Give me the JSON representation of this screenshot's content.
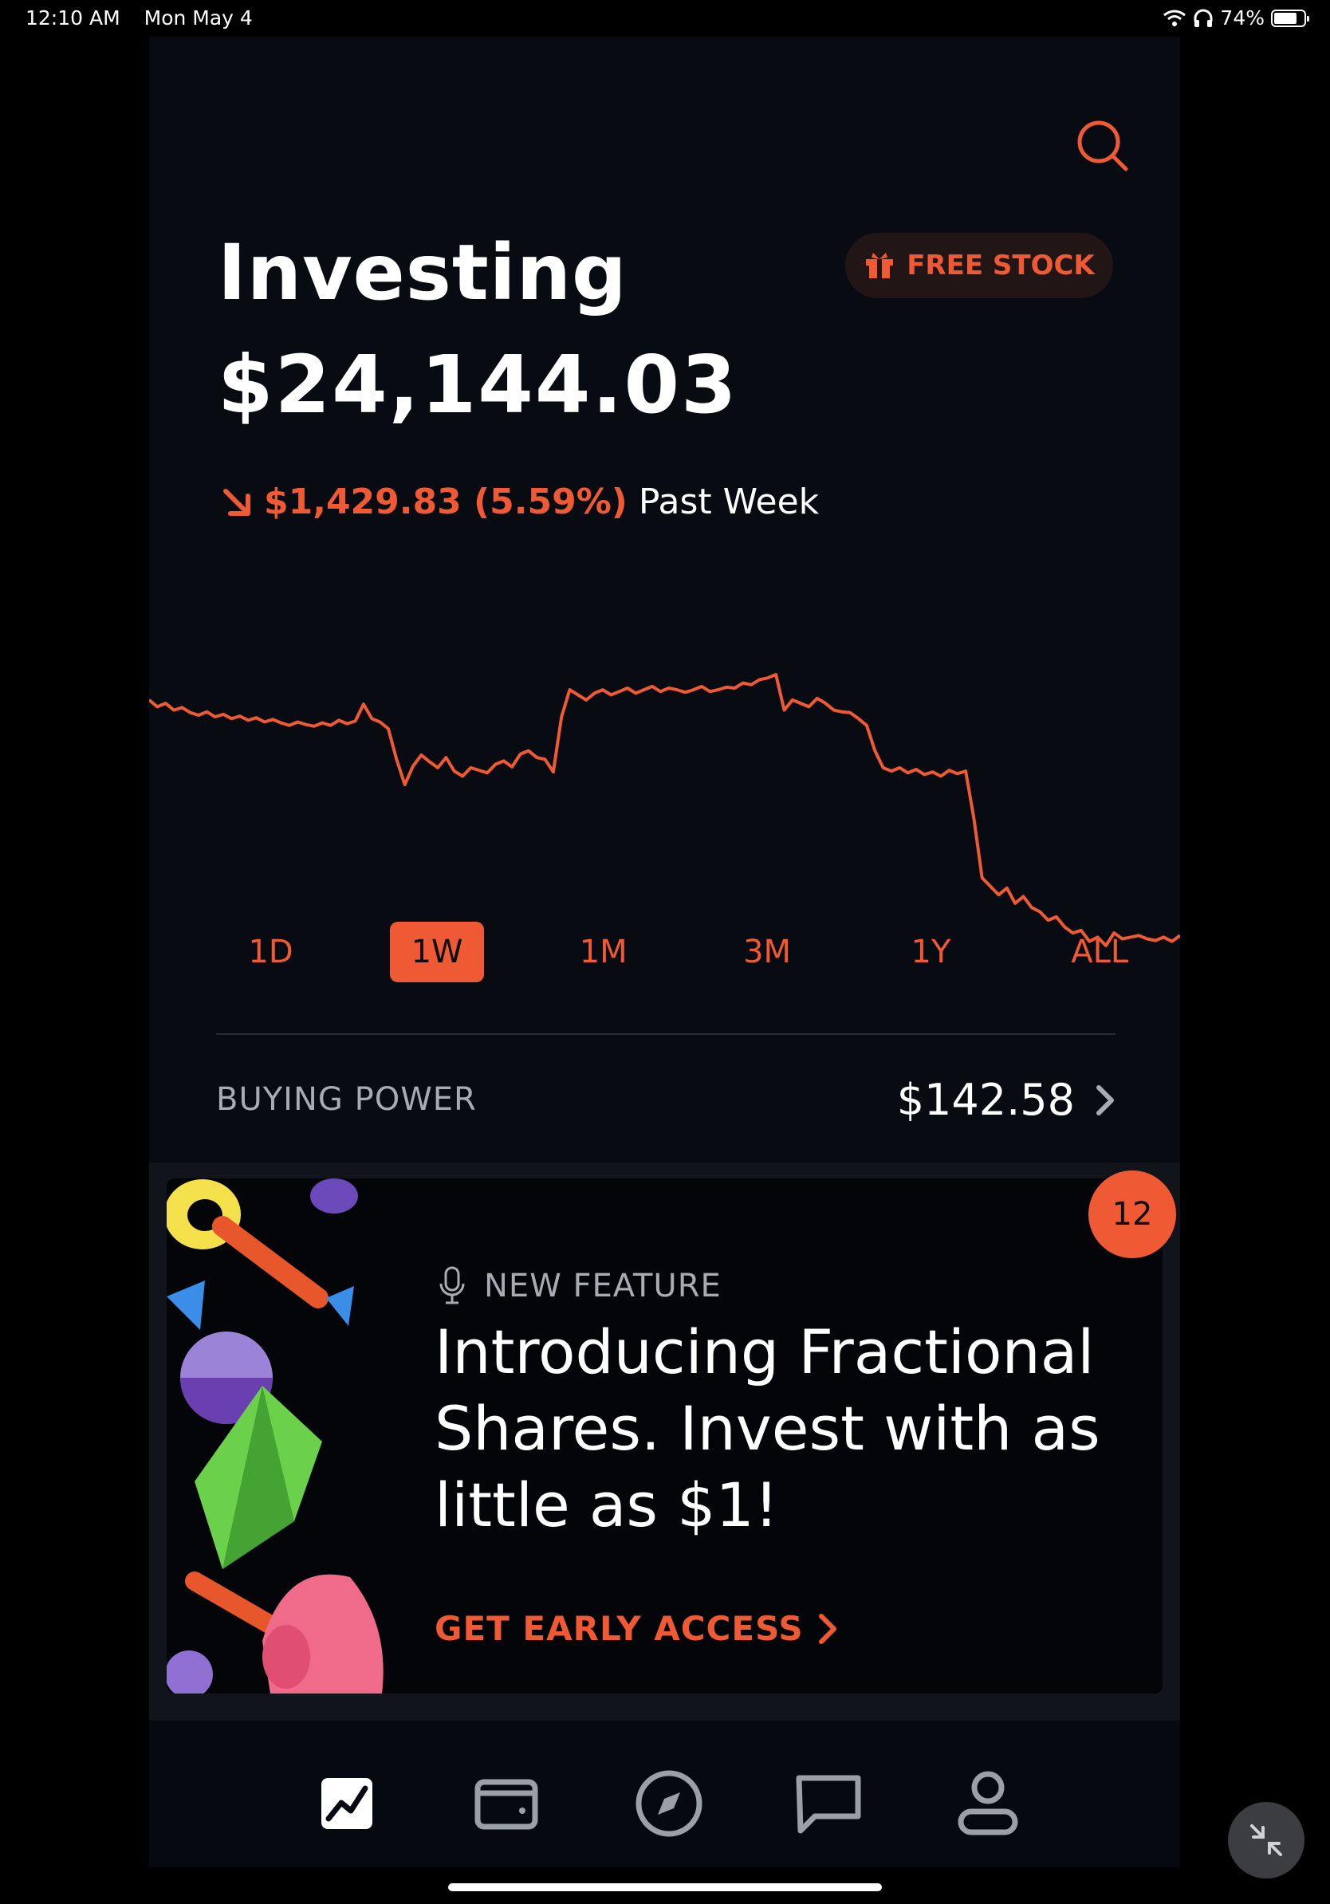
{
  "status_bar": {
    "time": "12:10 AM",
    "date": "Mon May 4",
    "battery": "74%"
  },
  "header": {
    "title": "Investing",
    "free_stock_label": "FREE STOCK"
  },
  "portfolio": {
    "balance": "$24,144.03",
    "change_amount": "$1,429.83 (5.59%)",
    "change_period": "Past Week",
    "direction": "down"
  },
  "chart_data": {
    "type": "line",
    "title": "",
    "series": [
      {
        "values": [
          24860,
          24852,
          24856,
          24848,
          24851,
          24845,
          24842,
          24846,
          24840,
          24843,
          24838,
          24841,
          24836,
          24839,
          24834,
          24837,
          24833,
          24830,
          24834,
          24831,
          24829,
          24833,
          24830,
          24836,
          24832,
          24835,
          24855,
          24838,
          24834,
          24826,
          24790,
          24760,
          24782,
          24795,
          24787,
          24780,
          24792,
          24776,
          24770,
          24780,
          24777,
          24774,
          24784,
          24788,
          24781,
          24796,
          24800,
          24792,
          24790,
          24775,
          24840,
          24872,
          24866,
          24860,
          24868,
          24872,
          24866,
          24870,
          24874,
          24868,
          24872,
          24876,
          24870,
          24874,
          24872,
          24869,
          24872,
          24876,
          24870,
          24872,
          24875,
          24874,
          24880,
          24878,
          24884,
          24886,
          24890,
          24848,
          24860,
          24856,
          24852,
          24862,
          24856,
          24848,
          24846,
          24845,
          24838,
          24830,
          24800,
          24780,
          24776,
          24780,
          24774,
          24778,
          24772,
          24775,
          24770,
          24777,
          24773,
          24776,
          24720,
          24650,
          24640,
          24630,
          24638,
          24620,
          24628,
          24615,
          24610,
          24600,
          24604,
          24592,
          24585,
          24588,
          24575,
          24580,
          24570,
          24585,
          24578,
          24580,
          24582,
          24578,
          24576,
          24580,
          24575,
          24582
        ]
      }
    ],
    "grid": false,
    "color": "#ef5a34"
  },
  "ranges": [
    {
      "label": "1D",
      "active": false
    },
    {
      "label": "1W",
      "active": true
    },
    {
      "label": "1M",
      "active": false
    },
    {
      "label": "3M",
      "active": false
    },
    {
      "label": "1Y",
      "active": false
    },
    {
      "label": "ALL",
      "active": false
    }
  ],
  "buying_power": {
    "label": "BUYING POWER",
    "value": "$142.58"
  },
  "promo": {
    "badge": "12",
    "tag": "NEW FEATURE",
    "headline": "Introducing Fractional Shares. Invest with as little as $1!",
    "cta": "GET EARLY ACCESS"
  },
  "tabs": [
    {
      "name": "portfolio-tab",
      "icon": "chart-icon",
      "active": true
    },
    {
      "name": "wallet-tab",
      "icon": "wallet-icon",
      "active": false
    },
    {
      "name": "explore-tab",
      "icon": "compass-icon",
      "active": false
    },
    {
      "name": "messages-tab",
      "icon": "chat-icon",
      "active": false
    },
    {
      "name": "account-tab",
      "icon": "person-icon",
      "active": false
    }
  ],
  "colors": {
    "accent": "#ef5a34",
    "background": "#080c12",
    "muted": "#a8acb2"
  }
}
